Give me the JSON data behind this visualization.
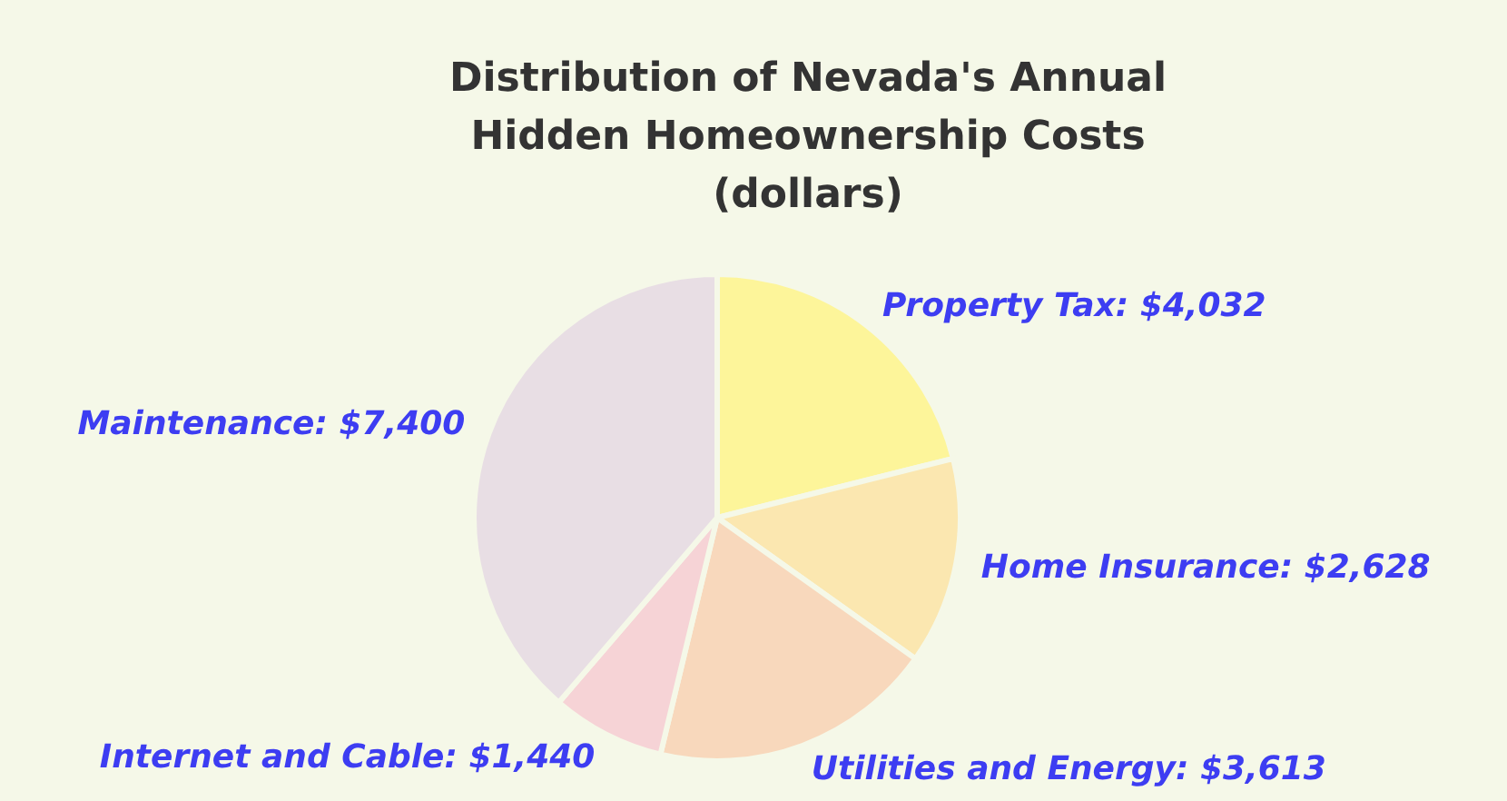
{
  "chart_data": {
    "type": "pie",
    "title": "Distribution of Nevada's Annual Hidden Homeownership Costs (dollars)",
    "categories": [
      "Property Tax",
      "Home Insurance",
      "Utilities and Energy",
      "Internet and Cable",
      "Maintenance"
    ],
    "values": [
      4032,
      2628,
      3613,
      1440,
      7400
    ],
    "colors": [
      "#fdf59a",
      "#fbe7b0",
      "#f8d8bc",
      "#f6d3d6",
      "#e8dee4"
    ],
    "value_labels": [
      "$4,032",
      "$2,628",
      "$3,613",
      "$1,440",
      "$7,400"
    ],
    "legend": false
  }
}
